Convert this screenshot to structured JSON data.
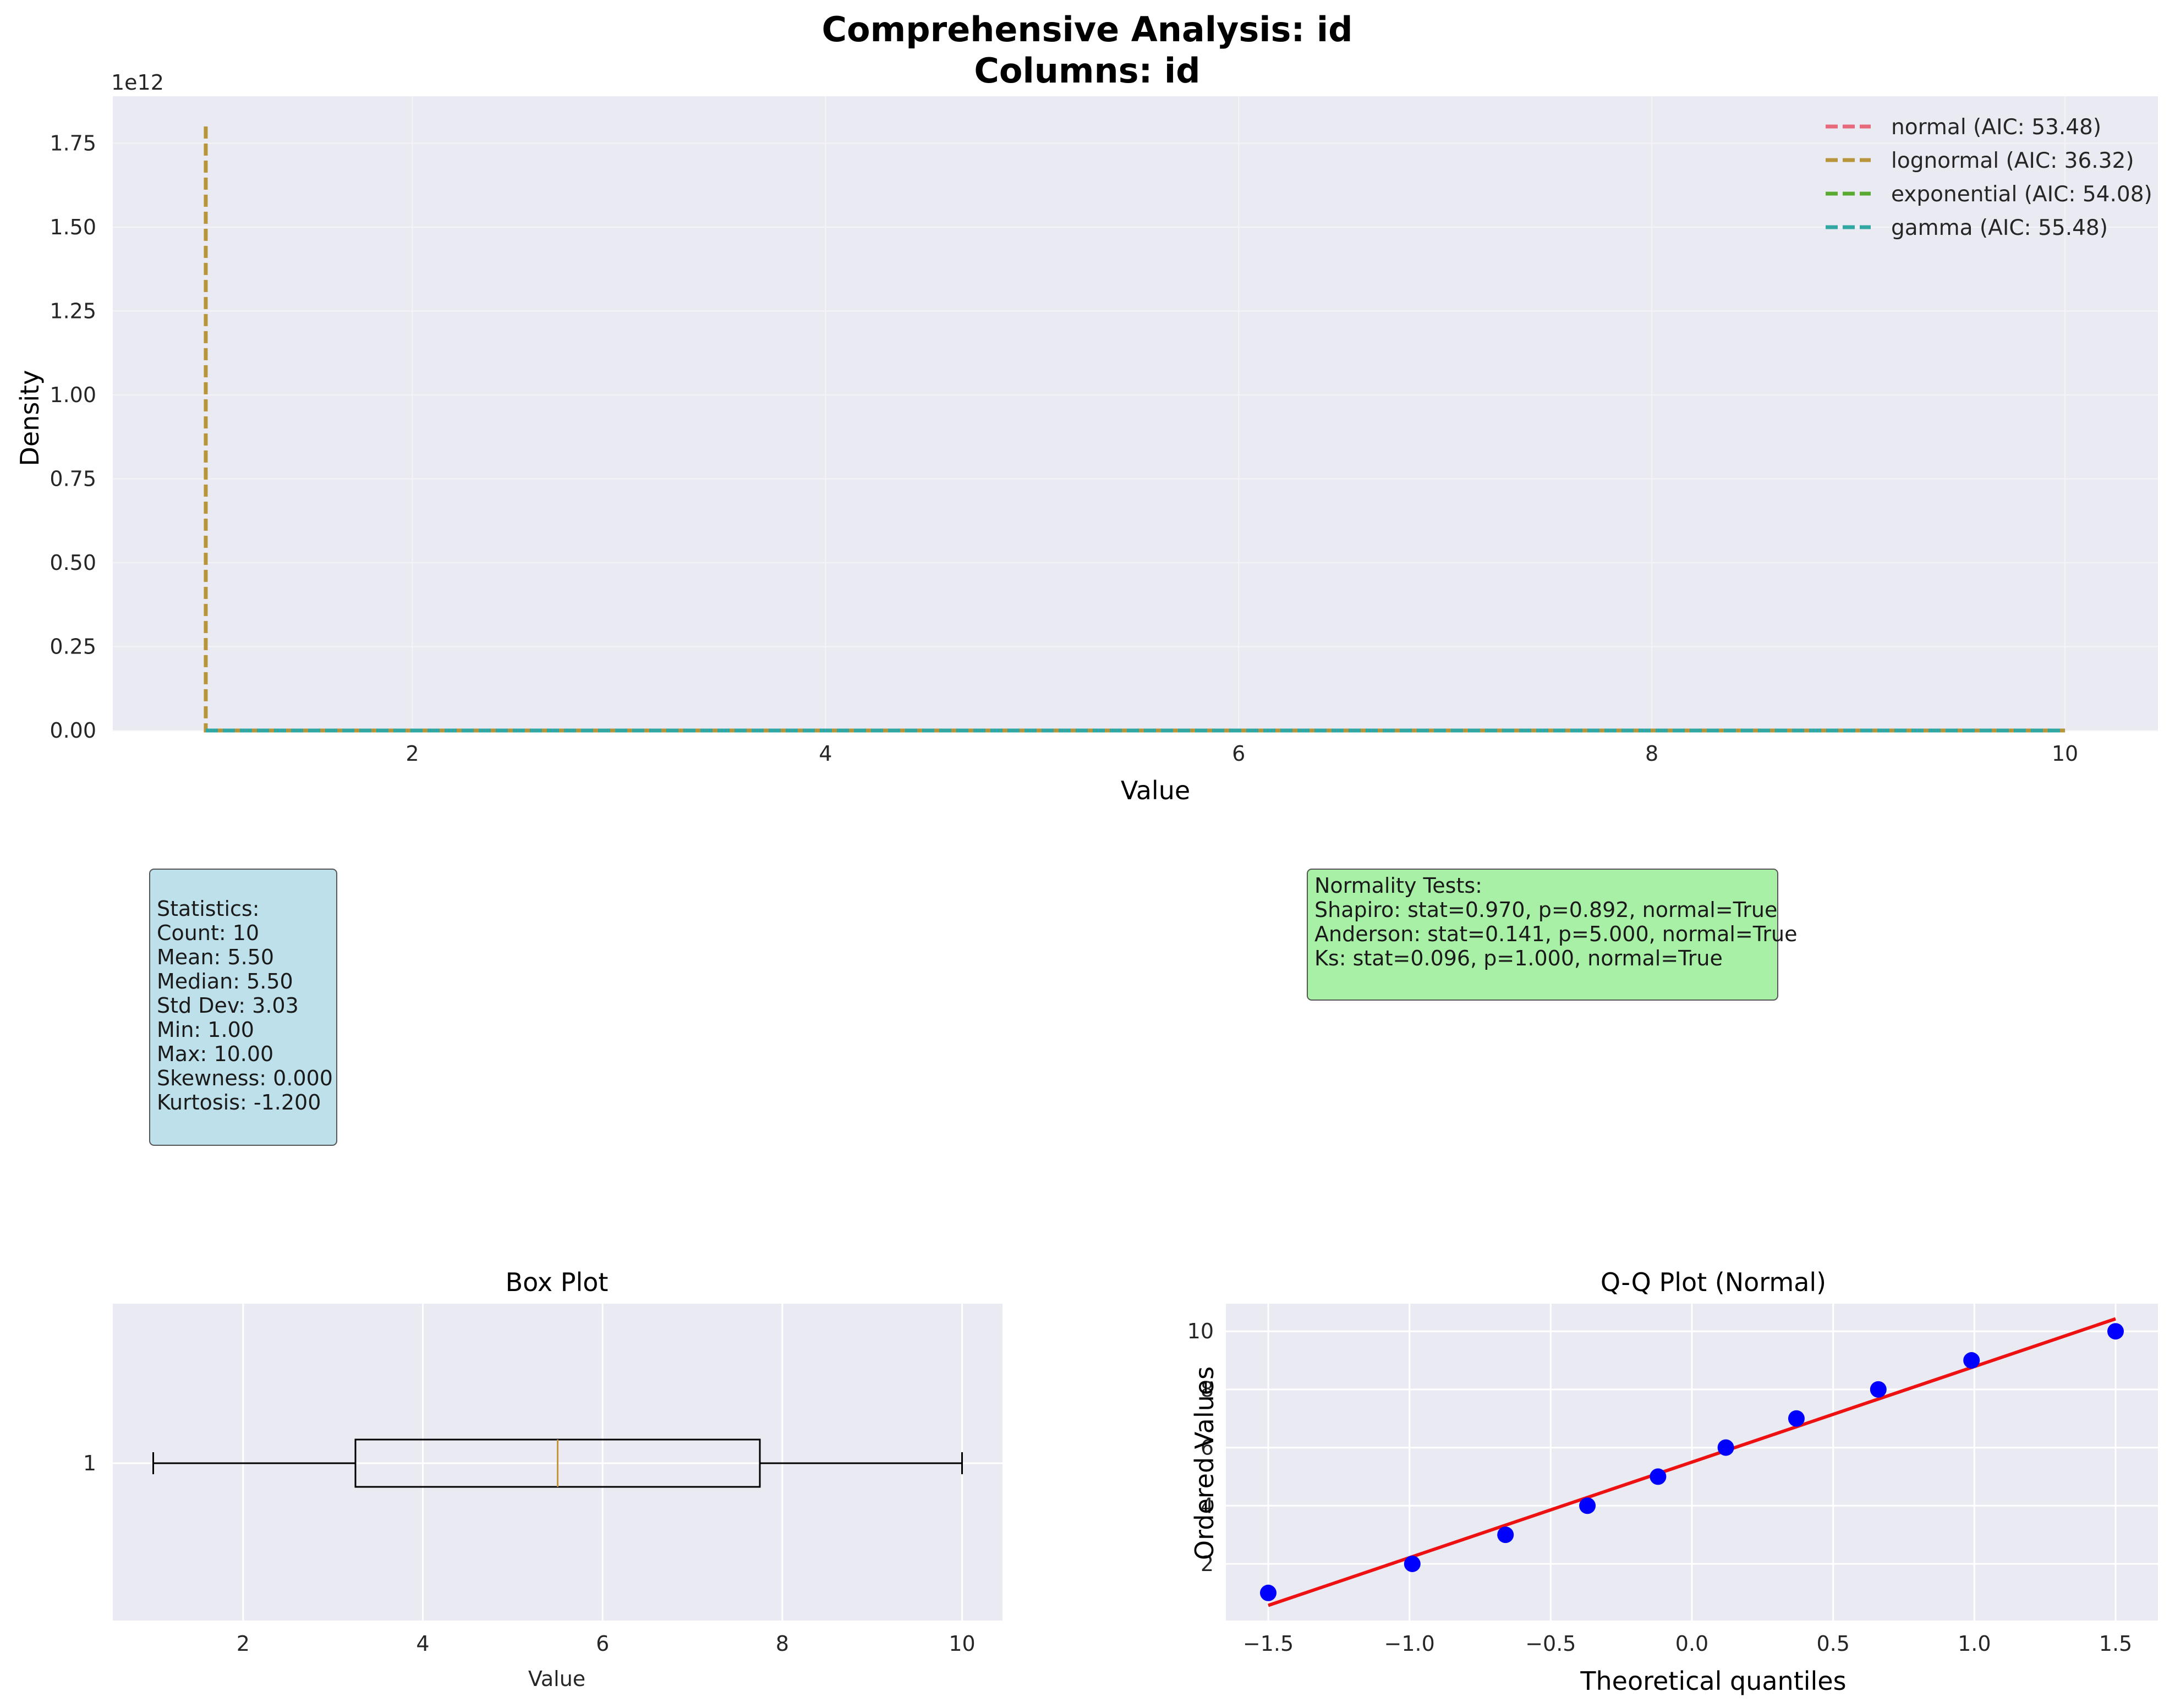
{
  "figure": {
    "title_line1": "Comprehensive Analysis: id",
    "title_line2": "Columns: id"
  },
  "chart_data": [
    {
      "type": "line",
      "xlabel": "Value",
      "ylabel": "Density",
      "y_offset_label": "1e12",
      "xlim": [
        0.55,
        10.45
      ],
      "ylim": [
        0,
        1.89
      ],
      "xticks": [
        2,
        4,
        6,
        8,
        10
      ],
      "yticks": [
        0.0,
        0.25,
        0.5,
        0.75,
        1.0,
        1.25,
        1.5,
        1.75
      ],
      "grid": true,
      "legend_position": "top-right",
      "series": [
        {
          "name": "normal (AIC: 53.48)",
          "color": "#e7697c",
          "style": "dashed",
          "x": [
            1,
            10
          ],
          "y": [
            0,
            0
          ]
        },
        {
          "name": "lognormal (AIC: 36.32)",
          "color": "#b8943a",
          "style": "dashed",
          "x": [
            1,
            1,
            10
          ],
          "y": [
            1.8,
            0,
            0
          ]
        },
        {
          "name": "exponential (AIC: 54.08)",
          "color": "#5aaa32",
          "style": "dashed",
          "x": [
            1,
            10
          ],
          "y": [
            0,
            0
          ]
        },
        {
          "name": "gamma (AIC: 55.48)",
          "color": "#31a7a3",
          "style": "dashed",
          "x": [
            1,
            10
          ],
          "y": [
            0,
            0
          ]
        }
      ]
    },
    {
      "type": "box",
      "title": "Box Plot",
      "xlabel": "Value",
      "ytick_label": "1",
      "xlim": [
        0.55,
        10.45
      ],
      "xticks": [
        2,
        4,
        6,
        8,
        10
      ],
      "whisker_low": 1.0,
      "q1": 3.25,
      "median": 5.5,
      "q3": 7.75,
      "whisker_high": 10.0,
      "median_color": "#c8953f"
    },
    {
      "type": "scatter",
      "title": "Q-Q Plot (Normal)",
      "xlabel": "Theoretical quantiles",
      "ylabel": "Ordered Values",
      "xlim": [
        -1.65,
        1.65
      ],
      "ylim": [
        0.05,
        10.95
      ],
      "xticks": [
        -1.5,
        -1.0,
        -0.5,
        0.0,
        0.5,
        1.0,
        1.5
      ],
      "yticks": [
        2,
        4,
        6,
        8,
        10
      ],
      "points": {
        "x": [
          -1.5,
          -0.99,
          -0.66,
          -0.37,
          -0.12,
          0.12,
          0.37,
          0.66,
          0.99,
          1.5
        ],
        "y": [
          1,
          2,
          3,
          4,
          5,
          6,
          7,
          8,
          9,
          10
        ],
        "color": "#0000ff"
      },
      "fit_line": {
        "x": [
          -1.5,
          1.5
        ],
        "y": [
          0.57,
          10.43
        ],
        "color": "#ee1111"
      }
    }
  ],
  "stats_box": {
    "lines": [
      "Statistics:",
      "Count: 10",
      "Mean: 5.50",
      "Median: 5.50",
      "Std Dev: 3.03",
      "Min: 1.00",
      "Max: 10.00",
      "Skewness: 0.000",
      "Kurtosis: -1.200"
    ],
    "bg_color": "#bde0ea"
  },
  "normality_box": {
    "lines": [
      "Normality Tests:",
      "Shapiro: stat=0.970, p=0.892, normal=True",
      "Anderson: stat=0.141, p=5.000, normal=True",
      "Ks: stat=0.096, p=1.000, normal=True"
    ],
    "bg_color": "#a8f0a5"
  },
  "colors": {
    "axes_bg": "#eaeaf2",
    "grid": "#ffffff",
    "text": "#262626"
  }
}
